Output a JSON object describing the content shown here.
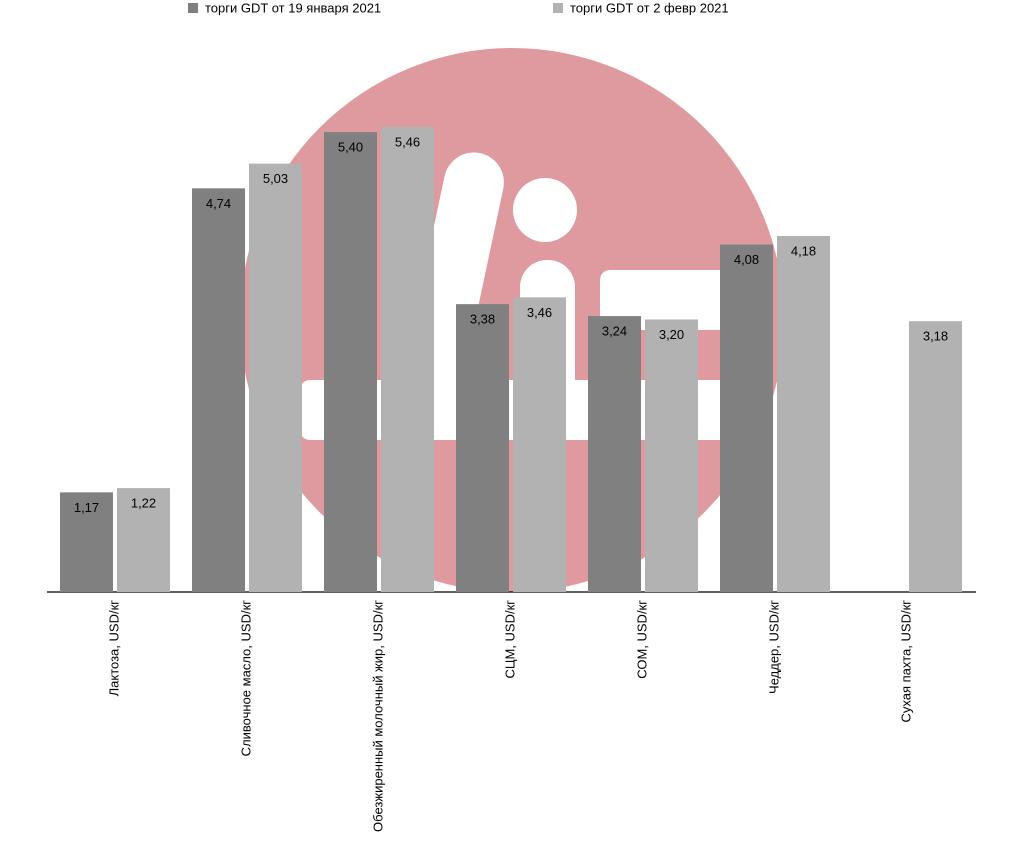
{
  "chart_data": {
    "type": "bar",
    "categories": [
      "Лактоза, USD/кг",
      "Сливочное масло, USD/кг",
      "Обезжиренный молочный жир, USD/кг",
      "СЦМ, USD/кг",
      "СОМ, USD/кг",
      "Чеддер, USD/кг",
      "Сухая пахта, USD/кг"
    ],
    "series": [
      {
        "name": "торги GDT от 19 января 2021",
        "color": "#7f807f",
        "values": [
          1.17,
          4.74,
          5.4,
          3.38,
          3.24,
          4.08,
          null
        ],
        "value_labels": [
          "1,17",
          "4,74",
          "5,40",
          "3,38",
          "3,24",
          "4,08",
          null
        ]
      },
      {
        "name": "торги GDT от 2 февр 2021",
        "color": "#b2b2b2",
        "values": [
          1.22,
          5.03,
          5.46,
          3.46,
          3.2,
          4.18,
          3.18
        ],
        "value_labels": [
          "1,22",
          "5,03",
          "5,46",
          "3,46",
          "3,20",
          "4,18",
          "3,18"
        ]
      }
    ]
  }
}
